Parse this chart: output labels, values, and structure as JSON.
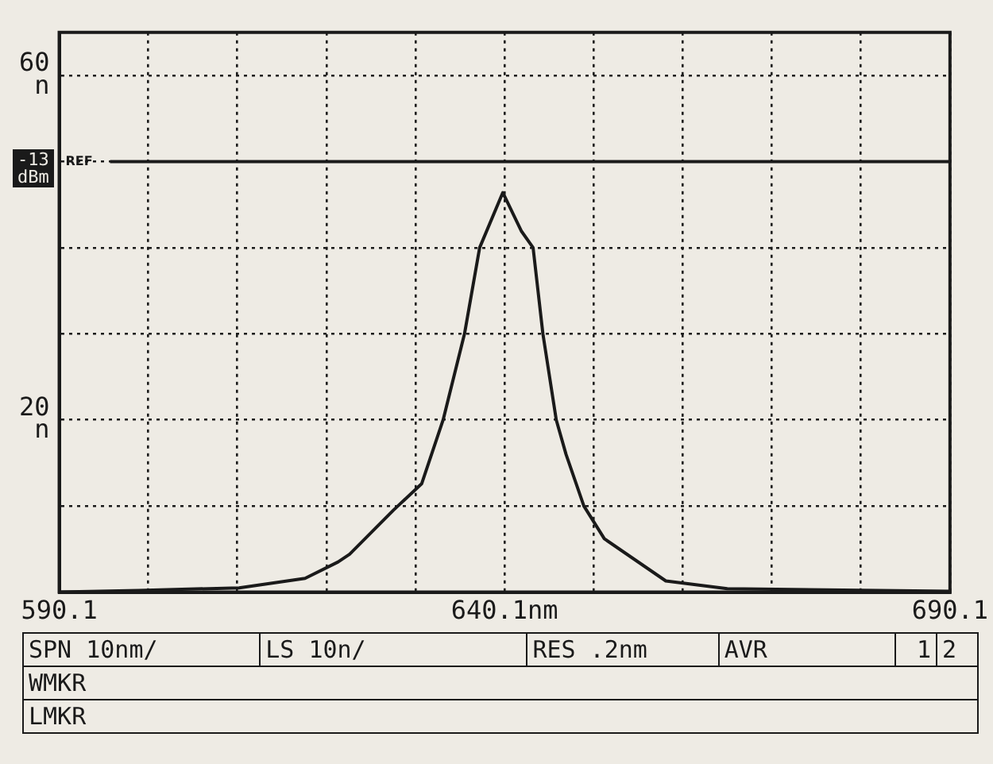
{
  "chart_data": {
    "type": "line",
    "x": [
      590.1,
      599,
      610.3,
      617.7,
      621.4,
      622.7,
      627.6,
      630.8,
      633.2,
      635.6,
      637.3,
      639.9,
      642.0,
      643.3,
      644.4,
      645.9,
      647.0,
      649.0,
      651.3,
      658.2,
      665.1,
      690.1
    ],
    "series": [
      {
        "color": "#1a1a1a",
        "values": [
          0,
          0.2,
          0.5,
          1.6,
          3.5,
          4.4,
          9.5,
          12.6,
          20,
          30,
          40,
          46.4,
          41.9,
          40,
          30,
          20,
          16,
          10,
          6.2,
          1.3,
          0.4,
          0.1
        ]
      }
    ],
    "xlim": [
      590.1,
      690.1
    ],
    "xticks": [
      590.1,
      {
        "value": 600.1,
        "label": null
      },
      {
        "value": 610.1,
        "label": null
      },
      {
        "value": 620.1,
        "label": null
      },
      {
        "value": 630.1,
        "label": null
      },
      {
        "value": 640.1,
        "label": "640.1nm"
      },
      {
        "value": 650.1,
        "label": null
      },
      {
        "value": 660.1,
        "label": null
      },
      {
        "value": 670.1,
        "label": null
      },
      {
        "value": 680.1,
        "label": null
      },
      690.1
    ],
    "ylim": [
      0,
      65
    ],
    "yticks": [
      {
        "value": 10,
        "label": null
      },
      {
        "value": 20,
        "label": "20\nn"
      },
      {
        "value": 30,
        "label": null
      },
      {
        "value": 40,
        "label": null
      },
      {
        "value": 50,
        "label": null
      },
      {
        "value": 60,
        "label": "60\nn"
      }
    ],
    "ref_lines": [
      {
        "axis": "y",
        "value": 50,
        "label": "REF",
        "color": "#1a1a1a",
        "line_style": "solid"
      }
    ],
    "annotations": [
      "-13\ndBm",
      "SPN 10nm/",
      "LS 10n/",
      "RES .2nm",
      "AVR",
      "1",
      "2",
      "WMKR",
      "LMKR"
    ],
    "grid": true,
    "legend": false,
    "marker": "none",
    "line_style": "solid"
  }
}
